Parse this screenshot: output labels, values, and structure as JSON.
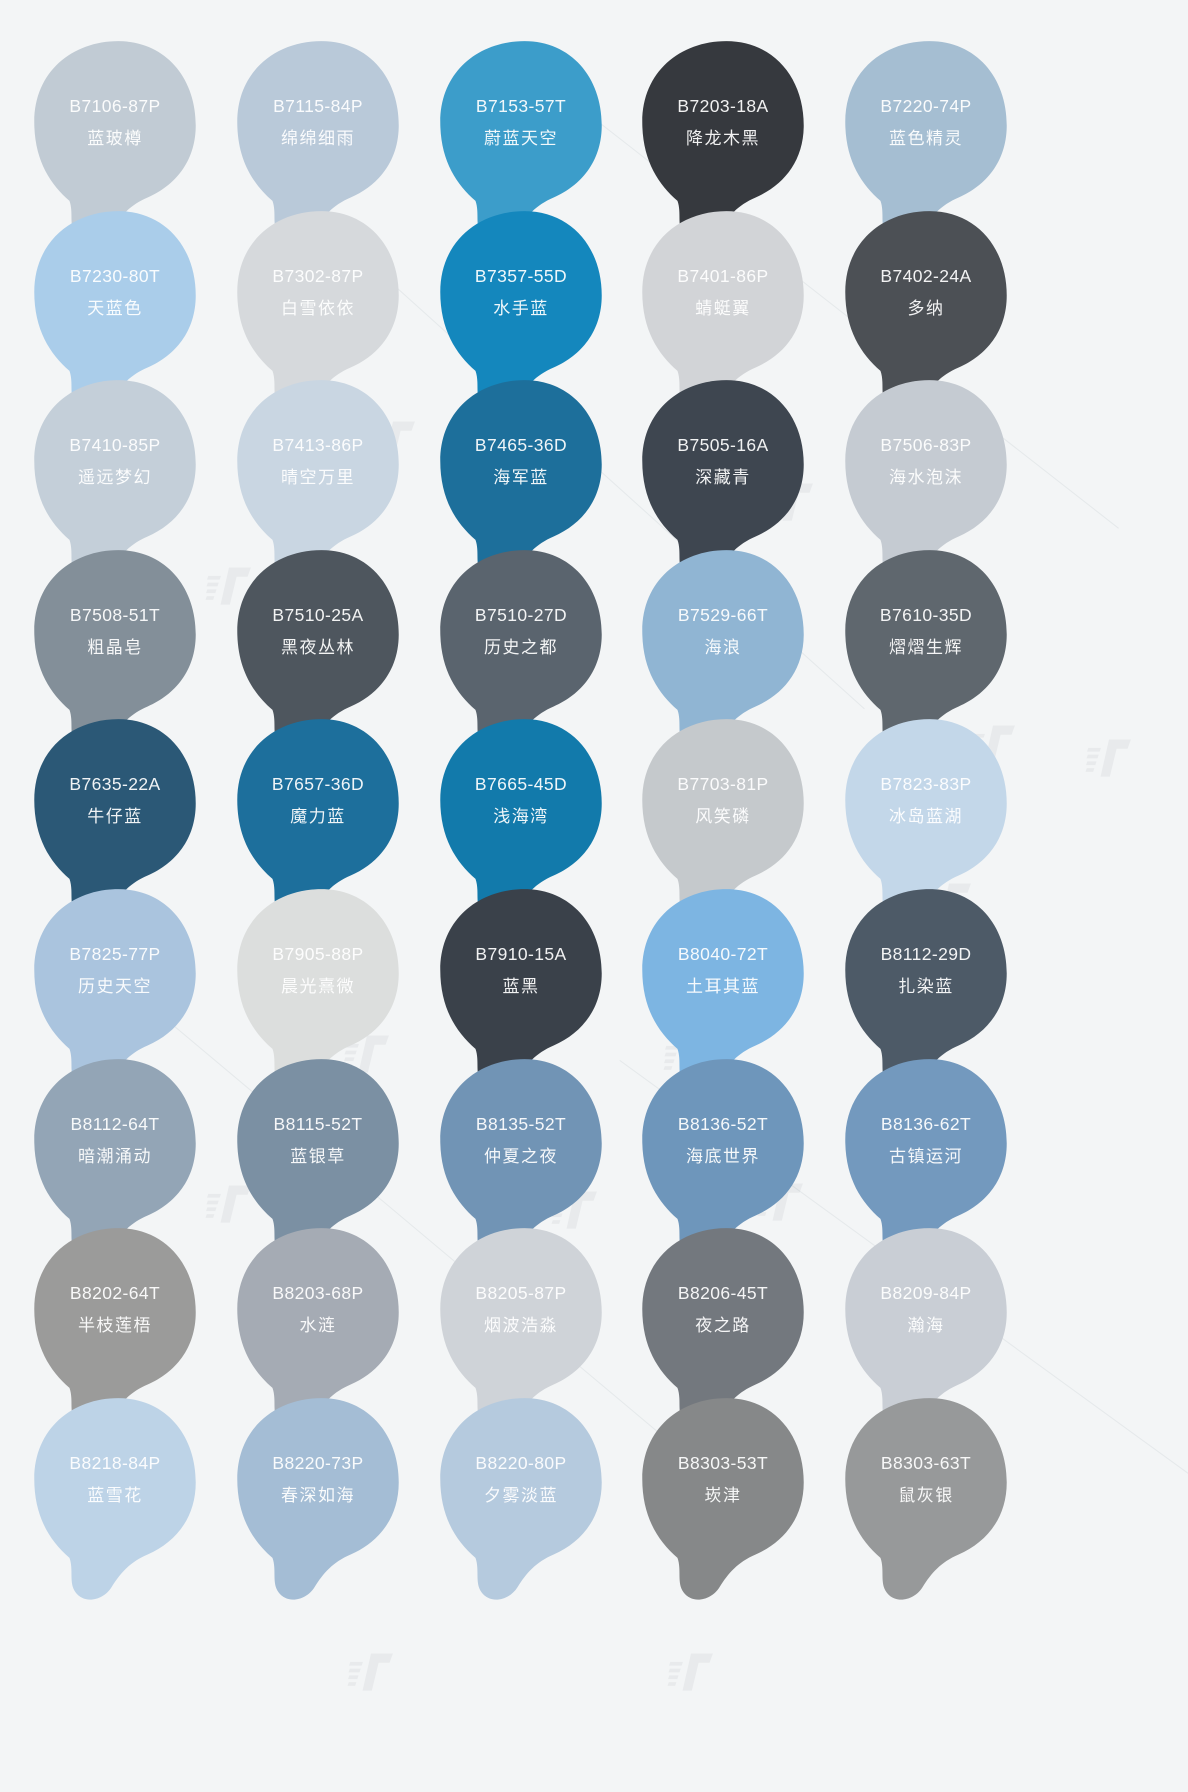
{
  "page": {
    "background": "#f3f5f6",
    "label_text_color": "rgba(255,255,255,0.93)"
  },
  "watermark": {
    "icon": "brand-logo-icon"
  },
  "swatches": [
    {
      "code": "B7106-87P",
      "name": "蓝玻樽",
      "color": "#c1cbd4"
    },
    {
      "code": "B7115-84P",
      "name": "绵绵细雨",
      "color": "#b9c9d9"
    },
    {
      "code": "B7153-57T",
      "name": "蔚蓝天空",
      "color": "#3c9dca"
    },
    {
      "code": "B7203-18A",
      "name": "降龙木黑",
      "color": "#36393e"
    },
    {
      "code": "B7220-74P",
      "name": "蓝色精灵",
      "color": "#a5bed2"
    },
    {
      "code": "B7230-80T",
      "name": "天蓝色",
      "color": "#aacdea"
    },
    {
      "code": "B7302-87P",
      "name": "白雪依依",
      "color": "#d6d9dc"
    },
    {
      "code": "B7357-55D",
      "name": "水手蓝",
      "color": "#1487bd"
    },
    {
      "code": "B7401-86P",
      "name": "蜻蜓翼",
      "color": "#d2d4d7"
    },
    {
      "code": "B7402-24A",
      "name": "多纳",
      "color": "#4c5055"
    },
    {
      "code": "B7410-85P",
      "name": "遥远梦幻",
      "color": "#c4cfd9"
    },
    {
      "code": "B7413-86P",
      "name": "晴空万里",
      "color": "#c9d6e2"
    },
    {
      "code": "B7465-36D",
      "name": "海军蓝",
      "color": "#1d6f9b"
    },
    {
      "code": "B7505-16A",
      "name": "深藏青",
      "color": "#3e4650"
    },
    {
      "code": "B7506-83P",
      "name": "海水泡沫",
      "color": "#c5cbd2"
    },
    {
      "code": "B7508-51T",
      "name": "粗晶皂",
      "color": "#838f99"
    },
    {
      "code": "B7510-25A",
      "name": "黑夜丛林",
      "color": "#4e565e"
    },
    {
      "code": "B7510-27D",
      "name": "历史之都",
      "color": "#5a646e"
    },
    {
      "code": "B7529-66T",
      "name": "海浪",
      "color": "#90b5d3"
    },
    {
      "code": "B7610-35D",
      "name": "熠熠生辉",
      "color": "#5f676e"
    },
    {
      "code": "B7635-22A",
      "name": "牛仔蓝",
      "color": "#2b5876"
    },
    {
      "code": "B7657-36D",
      "name": "魔力蓝",
      "color": "#1d6f9c"
    },
    {
      "code": "B7665-45D",
      "name": "浅海湾",
      "color": "#127aab"
    },
    {
      "code": "B7703-81P",
      "name": "风笑磷",
      "color": "#c5c9cc"
    },
    {
      "code": "B7823-83P",
      "name": "冰岛蓝湖",
      "color": "#c3d7e9"
    },
    {
      "code": "B7825-77P",
      "name": "历史天空",
      "color": "#aac4de"
    },
    {
      "code": "B7905-88P",
      "name": "晨光熹微",
      "color": "#dcdedd"
    },
    {
      "code": "B7910-15A",
      "name": "蓝黑",
      "color": "#3a414a"
    },
    {
      "code": "B8040-72T",
      "name": "土耳其蓝",
      "color": "#7db5e2"
    },
    {
      "code": "B8112-29D",
      "name": "扎染蓝",
      "color": "#4d5a67"
    },
    {
      "code": "B8112-64T",
      "name": "暗潮涌动",
      "color": "#93a5b6"
    },
    {
      "code": "B8115-52T",
      "name": "蓝银草",
      "color": "#7b90a3"
    },
    {
      "code": "B8135-52T",
      "name": "仲夏之夜",
      "color": "#7194b5"
    },
    {
      "code": "B8136-52T",
      "name": "海底世界",
      "color": "#6e96bb"
    },
    {
      "code": "B8136-62T",
      "name": "古镇运河",
      "color": "#7399be"
    },
    {
      "code": "B8202-64T",
      "name": "半枝莲梧",
      "color": "#9b9b9a"
    },
    {
      "code": "B8203-68P",
      "name": "水涟",
      "color": "#a5abb4"
    },
    {
      "code": "B8205-87P",
      "name": "烟波浩淼",
      "color": "#cfd3d8"
    },
    {
      "code": "B8206-45T",
      "name": "夜之路",
      "color": "#73787e"
    },
    {
      "code": "B8209-84P",
      "name": "瀚海",
      "color": "#c9ced5"
    },
    {
      "code": "B8218-84P",
      "name": "蓝雪花",
      "color": "#bdd3e7"
    },
    {
      "code": "B8220-73P",
      "name": "春深如海",
      "color": "#a4bdd5"
    },
    {
      "code": "B8220-80P",
      "name": "夕雾淡蓝",
      "color": "#b5cade"
    },
    {
      "code": "B8303-53T",
      "name": "崁津",
      "color": "#868889"
    },
    {
      "code": "B8303-63T",
      "name": "鼠灰银",
      "color": "#97999a"
    }
  ]
}
